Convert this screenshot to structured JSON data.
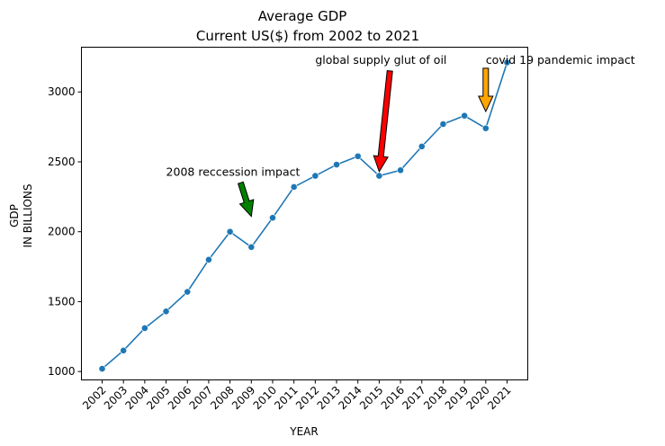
{
  "chart_data": {
    "type": "line",
    "title": "Average GDP",
    "subtitle": "Current US($) from 2002 to 2021",
    "xlabel": "YEAR",
    "ylabel_lines": [
      "GDP",
      "IN BILLIONS"
    ],
    "categories": [
      "2002",
      "2003",
      "2004",
      "2005",
      "2006",
      "2007",
      "2008",
      "2009",
      "2010",
      "2011",
      "2012",
      "2013",
      "2014",
      "2015",
      "2016",
      "2017",
      "2018",
      "2019",
      "2020",
      "2021"
    ],
    "series": [
      {
        "values": [
          1020,
          1150,
          1310,
          1430,
          1570,
          1800,
          2000,
          1890,
          2100,
          2320,
          2400,
          2480,
          2540,
          2400,
          2440,
          2610,
          2770,
          2830,
          2740,
          3210
        ],
        "color": "#1f77b4",
        "marker": "circle"
      }
    ],
    "ylim": [
      940,
      3320
    ],
    "yticks": [
      1000,
      1500,
      2000,
      2500,
      3000
    ],
    "grid": false,
    "annotations": [
      {
        "text": "2008 reccession impact",
        "text_x": "2005",
        "text_y": 2400,
        "arrow_from": [
          "2008.5",
          2350
        ],
        "arrow_to": [
          "2009",
          2110
        ],
        "arrow_color": "#008000"
      },
      {
        "text": "global supply glut of oil",
        "text_x": "2012",
        "text_y": 3200,
        "arrow_from": [
          "2015.5",
          3150
        ],
        "arrow_to": [
          "2015",
          2430
        ],
        "arrow_color": "#ff0000"
      },
      {
        "text": "covid 19 pandemic impact",
        "text_x": "2020",
        "text_y": 3200,
        "arrow_from": [
          "2020",
          3170
        ],
        "arrow_to": [
          "2020",
          2860
        ],
        "arrow_color": "#ffa500"
      }
    ]
  }
}
